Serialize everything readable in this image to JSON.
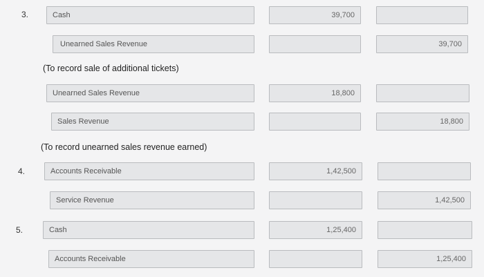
{
  "entries": [
    {
      "number": "3.",
      "lines": [
        {
          "account": "Cash",
          "debit": "39,700",
          "credit": ""
        },
        {
          "account": "Unearned Sales Revenue",
          "debit": "",
          "credit": "39,700"
        }
      ],
      "note": "(To record sale of additional tickets)"
    },
    {
      "number": "",
      "lines": [
        {
          "account": "Unearned Sales Revenue",
          "debit": "18,800",
          "credit": ""
        },
        {
          "account": "Sales Revenue",
          "debit": "",
          "credit": "18,800"
        }
      ],
      "note": "(To record unearned sales revenue earned)"
    },
    {
      "number": "4.",
      "lines": [
        {
          "account": "Accounts Receivable",
          "debit": "1,42,500",
          "credit": ""
        },
        {
          "account": "Service Revenue",
          "debit": "",
          "credit": "1,42,500"
        }
      ]
    },
    {
      "number": "5.",
      "lines": [
        {
          "account": "Cash",
          "debit": "1,25,400",
          "credit": ""
        },
        {
          "account": "Accounts Receivable",
          "debit": "",
          "credit": "1,25,400"
        }
      ]
    }
  ]
}
